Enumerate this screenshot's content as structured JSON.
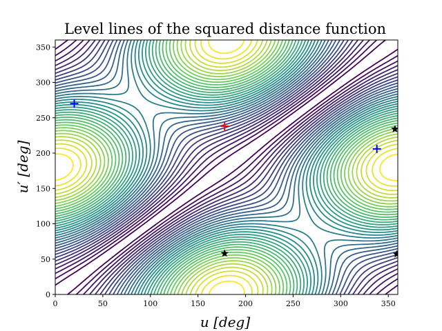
{
  "chart_data": {
    "type": "contour",
    "title": "Level lines of the squared distance function",
    "xlabel": "u [deg]",
    "ylabel": "u′ [deg]",
    "xlim": [
      0,
      360
    ],
    "ylim": [
      0,
      360
    ],
    "xticks": [
      "0",
      "50",
      "100",
      "150",
      "200",
      "250",
      "300",
      "350"
    ],
    "yticks": [
      "0",
      "50",
      "100",
      "150",
      "200",
      "250",
      "300",
      "350"
    ],
    "colormap": [
      "#440154",
      "#3b528b",
      "#21918c",
      "#5ec962",
      "#fde725"
    ],
    "grid": false,
    "markers": [
      {
        "kind": "maximum",
        "symbol": "plus",
        "color": "#ff0000",
        "x": 178,
        "y": 238
      },
      {
        "kind": "minimum",
        "symbol": "plus",
        "color": "#0000ff",
        "x": 20,
        "y": 270
      },
      {
        "kind": "minimum",
        "symbol": "plus",
        "color": "#0000ff",
        "x": 338,
        "y": 206
      },
      {
        "kind": "saddle",
        "symbol": "star",
        "color": "#000000",
        "x": 178,
        "y": 58
      },
      {
        "kind": "saddle",
        "symbol": "star",
        "color": "#000000",
        "x": 357,
        "y": 234
      },
      {
        "kind": "saddle",
        "symbol": "star",
        "color": "#000000",
        "x": 359,
        "y": 57
      }
    ]
  }
}
